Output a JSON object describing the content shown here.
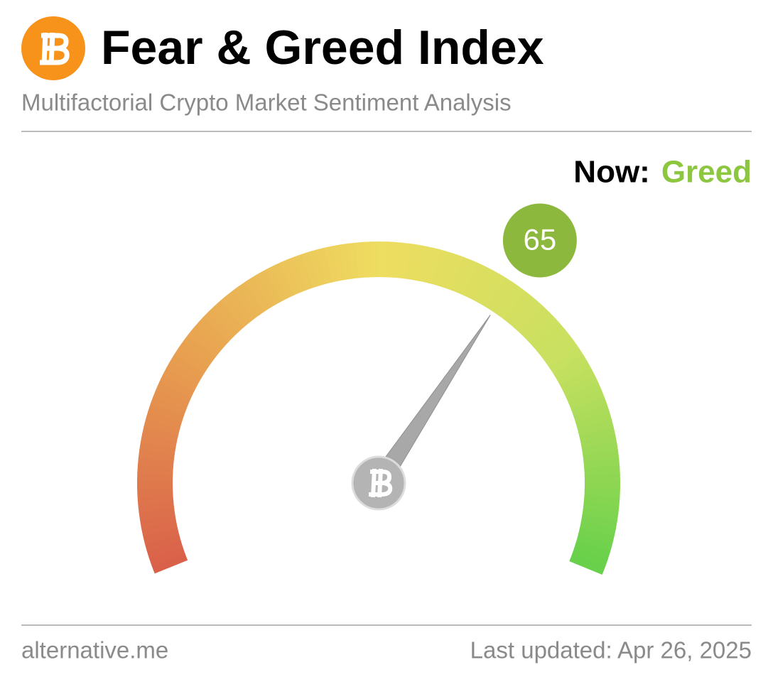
{
  "chart_data": {
    "type": "gauge",
    "title": "Fear & Greed Index",
    "subtitle": "Multifactorial Crypto Market Sentiment Analysis",
    "status_label": "Now:",
    "status": "Greed",
    "status_color": "#8dc63f",
    "value": 65,
    "ylim": [
      0,
      100
    ],
    "color": "#8db83e",
    "source": "alternative.me",
    "updated": "Last updated: Apr 26, 2025"
  }
}
